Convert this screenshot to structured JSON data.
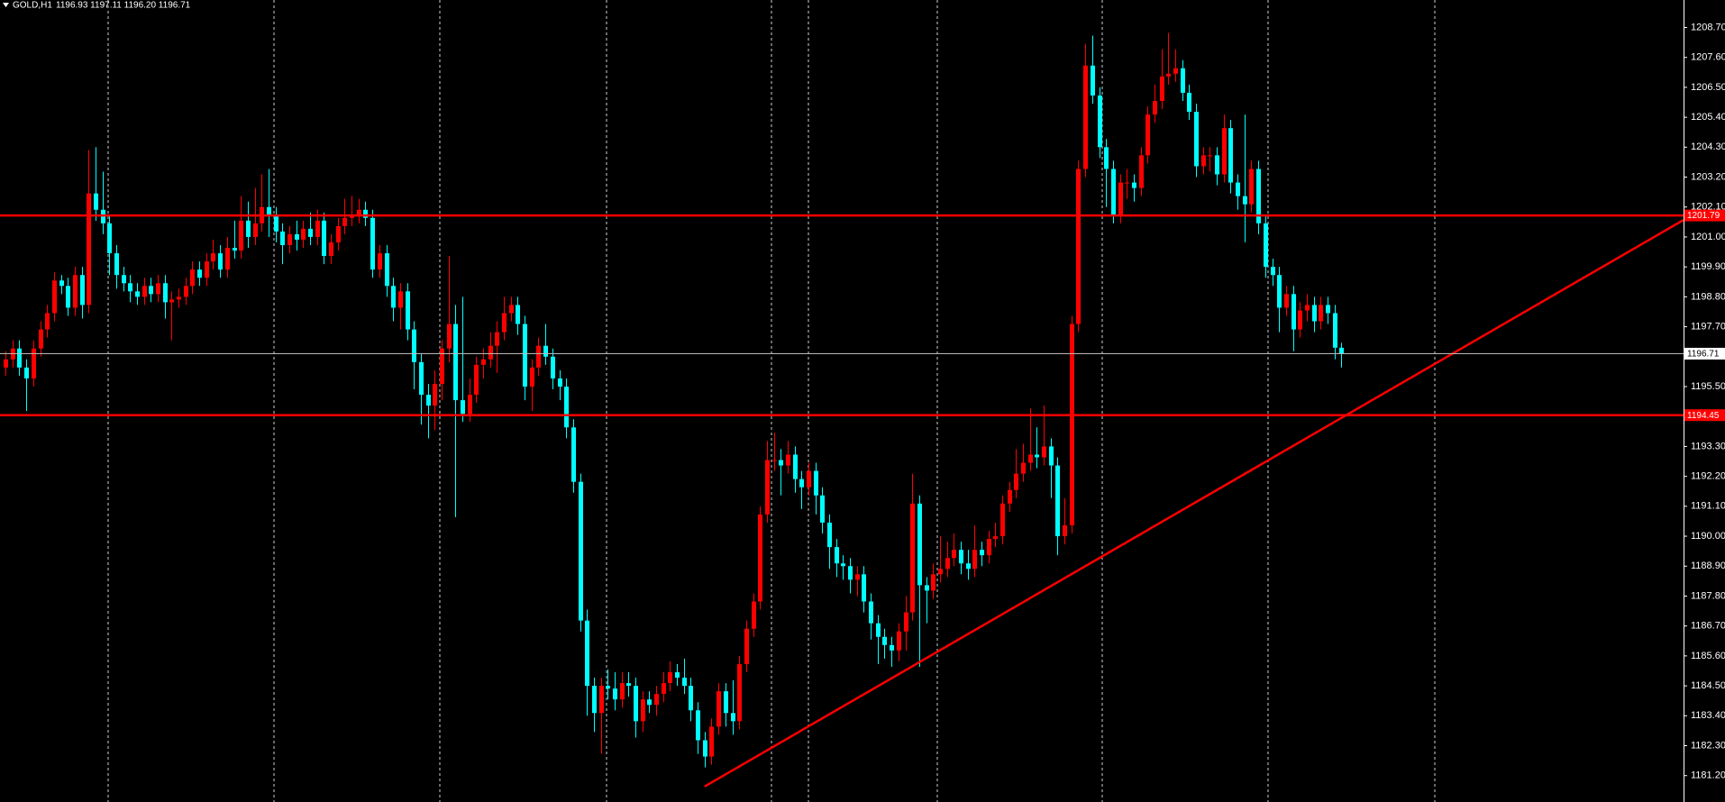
{
  "chart_data": {
    "type": "candlestick",
    "title": "GOLD,H1",
    "subtitle": "1196.93 1197.11 1196.20 1196.71",
    "bull_color": "#ff0000",
    "bear_color": "#00ffff",
    "level_color": "#ff0000",
    "current_line_color": "#b8b8b8",
    "ylim": [
      1180.23,
      1209.71
    ],
    "yticks": [
      {
        "value": 1208.7,
        "label": "1208.70"
      },
      {
        "value": 1207.6,
        "label": "1207.60"
      },
      {
        "value": 1206.5,
        "label": "1206.50"
      },
      {
        "value": 1205.4,
        "label": "1205.40"
      },
      {
        "value": 1204.3,
        "label": "1204.30"
      },
      {
        "value": 1203.2,
        "label": "1203.20"
      },
      {
        "value": 1202.1,
        "label": "1202.10"
      },
      {
        "value": 1201.0,
        "label": "1201.00"
      },
      {
        "value": 1199.9,
        "label": "1199.90"
      },
      {
        "value": 1198.8,
        "label": "1198.80"
      },
      {
        "value": 1197.7,
        "label": "1197.70"
      },
      {
        "value": 1195.5,
        "label": "1195.50"
      },
      {
        "value": 1193.3,
        "label": "1193.30"
      },
      {
        "value": 1192.2,
        "label": "1192.20"
      },
      {
        "value": 1191.1,
        "label": "1191.10"
      },
      {
        "value": 1190.0,
        "label": "1190.00"
      },
      {
        "value": 1188.9,
        "label": "1188.90"
      },
      {
        "value": 1187.8,
        "label": "1187.80"
      },
      {
        "value": 1186.7,
        "label": "1186.70"
      },
      {
        "value": 1185.6,
        "label": "1185.60"
      },
      {
        "value": 1184.5,
        "label": "1184.50"
      },
      {
        "value": 1183.4,
        "label": "1183.40"
      },
      {
        "value": 1182.3,
        "label": "1182.30"
      },
      {
        "value": 1181.2,
        "label": "1181.20"
      }
    ],
    "levels": [
      1201.79,
      1194.45
    ],
    "trendline": {
      "x": [
        101,
        242.4
      ],
      "y": [
        1180.8,
        1201.62
      ]
    },
    "open": [
      1196.2,
      1196.5,
      1196.9,
      1196.2,
      1195.8,
      1196.9,
      1197.6,
      1198.2,
      1199.4,
      1199.2,
      1198.4,
      1199.6,
      1198.5,
      1202.6,
      1202.0,
      1201.5,
      1200.4,
      1199.6,
      1199.3,
      1199.0,
      1198.8,
      1199.2,
      1198.9,
      1199.3,
      1198.6,
      1198.7,
      1198.8,
      1199.2,
      1199.8,
      1199.5,
      1200.1,
      1200.4,
      1199.8,
      1200.6,
      1200.5,
      1201.6,
      1201.0,
      1201.5,
      1202.1,
      1201.8,
      1201.2,
      1200.7,
      1201.1,
      1200.9,
      1201.3,
      1201.0,
      1201.6,
      1200.3,
      1200.8,
      1201.4,
      1201.7,
      1201.8,
      1202.0,
      1201.7,
      1199.8,
      1200.4,
      1199.2,
      1198.4,
      1199.0,
      1197.6,
      1196.4,
      1195.2,
      1194.8,
      1195.6,
      1196.9,
      1197.8,
      1195.0,
      1194.5,
      1195.2,
      1196.3,
      1196.5,
      1197.0,
      1197.5,
      1198.2,
      1198.5,
      1197.8,
      1195.5,
      1196.2,
      1197.0,
      1196.6,
      1195.8,
      1195.5,
      1194.0,
      1192.0,
      1186.9,
      1184.5,
      1183.5,
      1184.5,
      1184.4,
      1184.0,
      1184.6,
      1184.5,
      1183.2,
      1184.0,
      1183.8,
      1184.2,
      1184.6,
      1185.0,
      1184.8,
      1184.5,
      1183.6,
      1182.5,
      1181.9,
      1183.0,
      1184.3,
      1183.5,
      1183.2,
      1185.3,
      1186.6,
      1187.6,
      1190.8,
      1192.8,
      1192.8,
      1192.6,
      1193.0,
      1192.1,
      1191.8,
      1192.4,
      1191.5,
      1190.5,
      1189.6,
      1189.0,
      1188.9,
      1188.4,
      1188.6,
      1187.6,
      1186.8,
      1186.3,
      1186.0,
      1185.8,
      1186.5,
      1187.2,
      1191.2,
      1188.2,
      1188.0,
      1188.6,
      1188.8,
      1189.2,
      1189.5,
      1189.0,
      1188.8,
      1189.5,
      1189.3,
      1189.9,
      1190.0,
      1191.2,
      1191.7,
      1192.3,
      1192.7,
      1193.0,
      1192.9,
      1193.3,
      1192.6,
      1190.0,
      1190.4,
      1197.8,
      1203.5,
      1207.3,
      1206.2,
      1204.3,
      1203.5,
      1201.8,
      1203.0,
      1203.0,
      1202.8,
      1204.0,
      1205.5,
      1206.0,
      1206.9,
      1207.0,
      1207.2,
      1206.3,
      1205.6,
      1203.6,
      1204.0,
      1204.0,
      1203.3,
      1205.0,
      1203.0,
      1202.5,
      1202.2,
      1203.5,
      1201.5,
      1199.9,
      1199.6,
      1198.4,
      1198.9,
      1197.6,
      1198.3,
      1198.5,
      1197.9,
      1198.5,
      1198.2,
      1196.93
    ],
    "high": [
      1196.8,
      1197.2,
      1197.2,
      1196.5,
      1197.2,
      1197.9,
      1198.5,
      1199.7,
      1199.6,
      1199.5,
      1199.9,
      1199.9,
      1204.2,
      1204.3,
      1203.4,
      1201.8,
      1200.7,
      1199.9,
      1199.6,
      1199.3,
      1199.5,
      1199.5,
      1199.6,
      1199.6,
      1199.0,
      1199.1,
      1199.5,
      1200.1,
      1200.1,
      1200.4,
      1200.9,
      1200.7,
      1201.0,
      1201.6,
      1202.5,
      1202.3,
      1202.8,
      1203.3,
      1203.5,
      1202.1,
      1201.5,
      1201.4,
      1201.6,
      1201.6,
      1201.9,
      1202.0,
      1201.9,
      1201.1,
      1201.7,
      1202.4,
      1202.5,
      1202.4,
      1202.3,
      1202.0,
      1200.7,
      1200.7,
      1199.5,
      1199.3,
      1199.3,
      1197.9,
      1196.7,
      1195.6,
      1196.1,
      1197.2,
      1200.3,
      1198.5,
      1198.8,
      1195.8,
      1196.6,
      1196.9,
      1197.5,
      1197.9,
      1198.8,
      1198.8,
      1198.8,
      1198.1,
      1196.5,
      1197.3,
      1197.8,
      1196.9,
      1196.1,
      1195.8,
      1194.3,
      1192.3,
      1187.3,
      1184.8,
      1184.8,
      1185.1,
      1185.0,
      1185.0,
      1185.0,
      1184.8,
      1184.3,
      1184.3,
      1184.5,
      1185.0,
      1185.4,
      1185.3,
      1185.5,
      1184.8,
      1183.9,
      1182.8,
      1183.3,
      1184.6,
      1184.6,
      1184.7,
      1185.6,
      1186.9,
      1187.9,
      1191.1,
      1193.5,
      1193.8,
      1193.2,
      1193.5,
      1193.3,
      1192.4,
      1192.7,
      1192.7,
      1191.8,
      1190.8,
      1189.9,
      1189.3,
      1189.2,
      1188.9,
      1188.9,
      1187.9,
      1187.1,
      1186.6,
      1186.3,
      1186.8,
      1187.8,
      1192.3,
      1191.5,
      1188.5,
      1189.0,
      1190.0,
      1189.8,
      1190.1,
      1189.8,
      1189.5,
      1190.4,
      1189.8,
      1190.2,
      1190.5,
      1191.5,
      1192.0,
      1193.2,
      1193.4,
      1194.7,
      1194.0,
      1194.8,
      1193.6,
      1192.9,
      1191.4,
      1198.1,
      1203.8,
      1208.1,
      1208.4,
      1206.5,
      1204.6,
      1203.8,
      1203.3,
      1203.5,
      1203.3,
      1204.3,
      1205.8,
      1206.6,
      1207.9,
      1208.5,
      1207.9,
      1207.5,
      1206.6,
      1205.9,
      1204.3,
      1204.3,
      1204.3,
      1205.5,
      1205.3,
      1203.3,
      1205.5,
      1203.8,
      1203.8,
      1201.8,
      1200.2,
      1199.9,
      1199.2,
      1199.2,
      1198.6,
      1198.9,
      1198.8,
      1198.8,
      1198.8,
      1198.5,
      1197.11
    ],
    "low": [
      1195.9,
      1196.2,
      1195.9,
      1194.6,
      1195.5,
      1196.6,
      1197.3,
      1197.9,
      1198.9,
      1198.1,
      1198.1,
      1198.0,
      1198.2,
      1201.6,
      1201.1,
      1199.6,
      1199.1,
      1199.0,
      1198.6,
      1198.5,
      1198.5,
      1198.6,
      1198.6,
      1198.0,
      1197.2,
      1198.4,
      1198.5,
      1198.9,
      1199.2,
      1199.2,
      1199.8,
      1199.5,
      1199.5,
      1200.2,
      1200.2,
      1200.6,
      1200.7,
      1201.2,
      1201.0,
      1200.8,
      1200.0,
      1200.4,
      1200.5,
      1200.6,
      1200.7,
      1200.7,
      1200.0,
      1200.0,
      1200.5,
      1201.1,
      1201.4,
      1201.5,
      1201.4,
      1199.5,
      1199.5,
      1198.8,
      1197.9,
      1197.6,
      1197.2,
      1195.4,
      1194.1,
      1193.6,
      1193.9,
      1195.0,
      1196.4,
      1190.7,
      1194.2,
      1194.2,
      1194.9,
      1195.8,
      1196.2,
      1196.0,
      1197.2,
      1197.9,
      1197.4,
      1195.0,
      1194.6,
      1195.9,
      1196.3,
      1195.4,
      1195.0,
      1193.6,
      1191.6,
      1186.5,
      1183.4,
      1182.8,
      1182.0,
      1184.0,
      1183.6,
      1183.7,
      1184.1,
      1182.6,
      1182.8,
      1183.5,
      1183.4,
      1183.9,
      1184.3,
      1184.5,
      1184.2,
      1183.2,
      1182.0,
      1181.5,
      1181.6,
      1182.7,
      1183.0,
      1182.7,
      1182.9,
      1185.0,
      1186.3,
      1187.3,
      1190.5,
      1192.4,
      1191.5,
      1192.3,
      1191.6,
      1191.0,
      1191.5,
      1190.8,
      1190.1,
      1188.8,
      1188.5,
      1188.4,
      1187.9,
      1187.8,
      1187.2,
      1186.2,
      1185.3,
      1185.5,
      1185.2,
      1185.4,
      1185.8,
      1186.9,
      1185.2,
      1186.8,
      1187.7,
      1188.3,
      1188.5,
      1188.9,
      1188.6,
      1188.4,
      1188.5,
      1188.9,
      1189.0,
      1189.6,
      1189.7,
      1190.9,
      1191.4,
      1192.0,
      1192.4,
      1192.5,
      1192.6,
      1191.4,
      1189.3,
      1189.7,
      1190.1,
      1197.5,
      1203.2,
      1205.9,
      1203.9,
      1202.1,
      1201.5,
      1201.5,
      1202.4,
      1202.3,
      1202.5,
      1203.7,
      1205.2,
      1205.7,
      1206.6,
      1206.7,
      1206.0,
      1205.3,
      1203.2,
      1203.3,
      1203.4,
      1202.9,
      1203.0,
      1202.6,
      1202.0,
      1200.8,
      1201.9,
      1201.1,
      1199.5,
      1199.2,
      1197.5,
      1198.1,
      1196.8,
      1197.3,
      1197.9,
      1197.5,
      1197.6,
      1197.8,
      1196.5,
      1196.2
    ],
    "close": [
      1196.5,
      1196.9,
      1196.2,
      1195.8,
      1196.9,
      1197.6,
      1198.2,
      1199.4,
      1199.2,
      1198.4,
      1199.6,
      1198.5,
      1202.6,
      1202.0,
      1201.5,
      1200.4,
      1199.6,
      1199.3,
      1199.0,
      1198.8,
      1199.2,
      1198.9,
      1199.3,
      1198.6,
      1198.7,
      1198.8,
      1199.2,
      1199.8,
      1199.5,
      1200.1,
      1200.4,
      1199.8,
      1200.6,
      1200.5,
      1201.6,
      1201.0,
      1201.5,
      1202.1,
      1201.8,
      1201.2,
      1200.7,
      1201.1,
      1200.9,
      1201.3,
      1201.0,
      1201.6,
      1200.3,
      1200.8,
      1201.4,
      1201.7,
      1201.8,
      1202.0,
      1201.7,
      1199.8,
      1200.4,
      1199.2,
      1198.4,
      1199.0,
      1197.6,
      1196.4,
      1195.2,
      1194.8,
      1195.6,
      1196.9,
      1197.8,
      1195.0,
      1194.5,
      1195.2,
      1196.3,
      1196.5,
      1197.0,
      1197.5,
      1198.2,
      1198.5,
      1197.8,
      1195.5,
      1196.2,
      1197.0,
      1196.6,
      1195.8,
      1195.5,
      1194.0,
      1192.0,
      1186.9,
      1184.5,
      1183.5,
      1184.5,
      1184.4,
      1184.0,
      1184.6,
      1184.5,
      1183.2,
      1184.0,
      1183.8,
      1184.2,
      1184.6,
      1185.0,
      1184.8,
      1184.5,
      1183.6,
      1182.5,
      1181.9,
      1183.0,
      1184.3,
      1183.5,
      1183.2,
      1185.3,
      1186.6,
      1187.6,
      1190.8,
      1192.8,
      1192.8,
      1192.6,
      1193.0,
      1192.1,
      1191.8,
      1192.4,
      1191.5,
      1190.5,
      1189.6,
      1189.0,
      1188.9,
      1188.4,
      1188.6,
      1187.6,
      1186.8,
      1186.3,
      1186.0,
      1185.8,
      1186.5,
      1187.2,
      1191.2,
      1188.2,
      1188.0,
      1188.6,
      1188.8,
      1189.2,
      1189.5,
      1189.0,
      1188.8,
      1189.5,
      1189.3,
      1189.9,
      1190.0,
      1191.2,
      1191.7,
      1192.3,
      1192.7,
      1193.0,
      1192.9,
      1193.3,
      1192.6,
      1190.0,
      1190.4,
      1197.8,
      1203.5,
      1207.3,
      1206.2,
      1204.3,
      1203.5,
      1201.8,
      1203.0,
      1203.0,
      1202.8,
      1204.0,
      1205.5,
      1206.0,
      1206.9,
      1207.0,
      1207.2,
      1206.3,
      1205.6,
      1203.6,
      1204.0,
      1204.0,
      1203.3,
      1205.0,
      1203.0,
      1202.5,
      1202.2,
      1203.5,
      1201.5,
      1199.9,
      1199.6,
      1198.4,
      1198.9,
      1197.6,
      1198.3,
      1198.5,
      1197.9,
      1198.5,
      1198.2,
      1196.93,
      1196.71
    ]
  }
}
